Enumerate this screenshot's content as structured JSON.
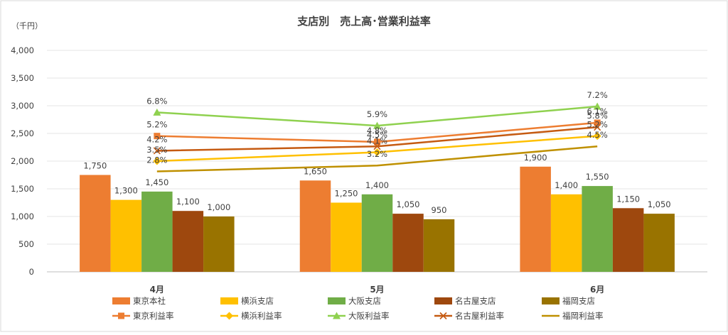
{
  "chart_data": {
    "type": "bar",
    "title": "支店別　売上高･営業利益率",
    "ylabel": "（千円）",
    "ylim": [
      0,
      4000
    ],
    "yticks": [
      "0",
      "500",
      "1,000",
      "1,500",
      "2,000",
      "2,500",
      "3,000",
      "3,500",
      "4,000"
    ],
    "categories": [
      "4月",
      "5月",
      "6月"
    ],
    "bar_series": [
      {
        "name": "東京本社",
        "color": "#ED7D31",
        "values": [
          1750,
          1650,
          1900
        ],
        "labels": [
          "1,750",
          "1,650",
          "1,900"
        ]
      },
      {
        "name": "横浜支店",
        "color": "#FFC000",
        "values": [
          1300,
          1250,
          1400
        ],
        "labels": [
          "1,300",
          "1,250",
          "1,400"
        ]
      },
      {
        "name": "大阪支店",
        "color": "#70AD47",
        "values": [
          1450,
          1400,
          1550
        ],
        "labels": [
          "1,450",
          "1,400",
          "1,550"
        ]
      },
      {
        "name": "名古屋支店",
        "color": "#9E480E",
        "values": [
          1100,
          1050,
          1150
        ],
        "labels": [
          "1,100",
          "1,050",
          "1,150"
        ]
      },
      {
        "name": "福岡支店",
        "color": "#997300",
        "values": [
          1000,
          950,
          1050
        ],
        "labels": [
          "1,000",
          "950",
          "1,050"
        ]
      }
    ],
    "line_series": [
      {
        "name": "東京利益率",
        "color": "#ED7D31",
        "marker": "square",
        "values": [
          5.2,
          4.8,
          6.1
        ],
        "labels": [
          "5.2%",
          "4.8%",
          "6.1%"
        ]
      },
      {
        "name": "横浜利益率",
        "color": "#FFC000",
        "marker": "diamond",
        "values": [
          3.5,
          4.1,
          5.2
        ],
        "labels": [
          "3.5%",
          "4.1%",
          "5.2%"
        ]
      },
      {
        "name": "大阪利益率",
        "color": "#8FD14F",
        "marker": "triangle",
        "values": [
          6.8,
          5.9,
          7.2
        ],
        "labels": [
          "6.8%",
          "5.9%",
          "7.2%"
        ]
      },
      {
        "name": "名古屋利益率",
        "color": "#C55A11",
        "marker": "x",
        "values": [
          4.2,
          4.5,
          5.8
        ],
        "labels": [
          "4.2%",
          "4.5%",
          "5.8%"
        ]
      },
      {
        "name": "福岡利益率",
        "color": "#BF9000",
        "marker": "none",
        "values": [
          2.8,
          3.2,
          4.5
        ],
        "labels": [
          "2.8%",
          "3.2%",
          "4.5%"
        ]
      }
    ],
    "secondary_ylim": [
      -4,
      11
    ],
    "legend_position": "bottom"
  }
}
